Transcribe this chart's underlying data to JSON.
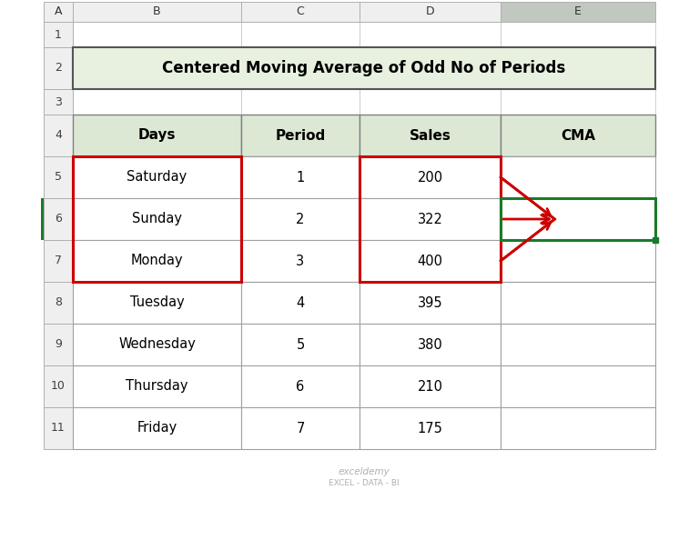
{
  "title": "Centered Moving Average of Odd No of Periods",
  "col_headers": [
    "Days",
    "Period",
    "Sales",
    "CMA"
  ],
  "col_letters": [
    "A",
    "B",
    "C",
    "D",
    "E"
  ],
  "rows": [
    [
      "Saturday",
      "1",
      "200",
      ""
    ],
    [
      "Sunday",
      "2",
      "322",
      ""
    ],
    [
      "Monday",
      "3",
      "400",
      ""
    ],
    [
      "Tuesday",
      "4",
      "395",
      ""
    ],
    [
      "Wednesday",
      "5",
      "380",
      ""
    ],
    [
      "Thursday",
      "6",
      "210",
      ""
    ],
    [
      "Friday",
      "7",
      "175",
      ""
    ]
  ],
  "bg_color": "#ffffff",
  "header_fill": "#dce8d4",
  "grid_color": "#a0a0a0",
  "arrow_color": "#cc0000",
  "green_color": "#1a7a2a",
  "excel_header_fill": "#efefef",
  "col_E_header_fill": "#c0c8c0",
  "watermark_line1": "exceldemy",
  "watermark_line2": "EXCEL - DATA - BI",
  "title_border_color": "#555555",
  "title_fill": "#e8f0e0"
}
